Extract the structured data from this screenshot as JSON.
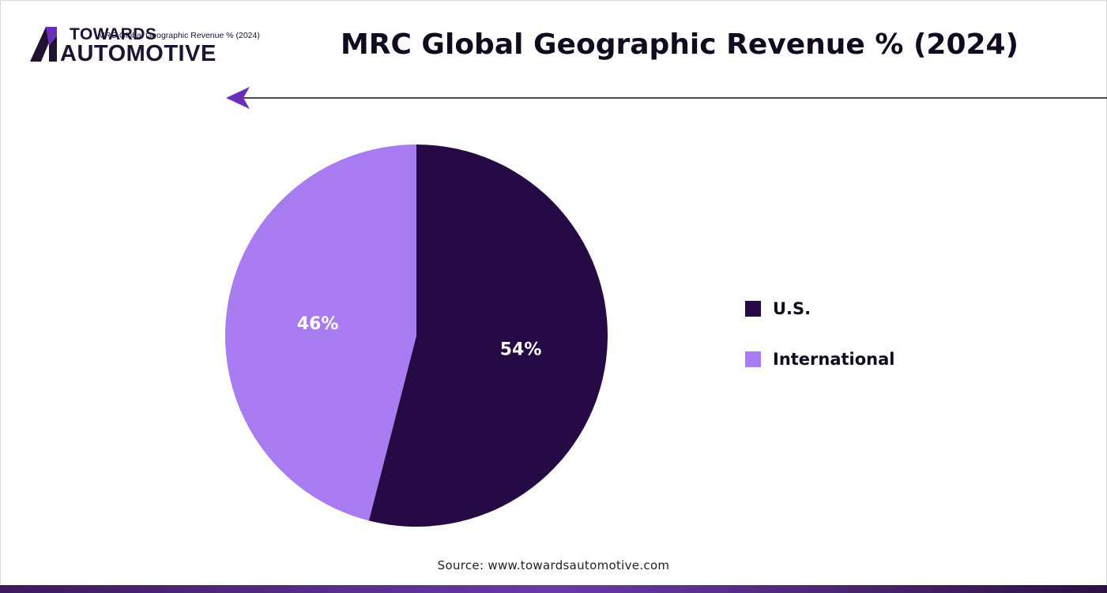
{
  "logo": {
    "line1": "TOWARDS",
    "line2": "AUTOMOTIVE",
    "ghost_text": "MRC Global Geographic Revenue % (2024)",
    "accent_color": "#6a2fb8"
  },
  "title": "MRC Global Geographic Revenue % (2024)",
  "source": "Source: www.towardsautomotive.com",
  "chart_data": {
    "type": "pie",
    "title": "MRC Global Geographic Revenue % (2024)",
    "slices": [
      {
        "name": "U.S.",
        "value": 54,
        "label": "54%",
        "color": "#260a45"
      },
      {
        "name": "International",
        "value": 46,
        "label": "46%",
        "color": "#a97bf0"
      }
    ],
    "legend_position": "right"
  },
  "colors": {
    "us": "#260a45",
    "international": "#a97bf0",
    "bar_gradient_start": "#3b1a5c",
    "bar_gradient_mid": "#6a3aa8",
    "bar_gradient_end": "#2c1240"
  }
}
